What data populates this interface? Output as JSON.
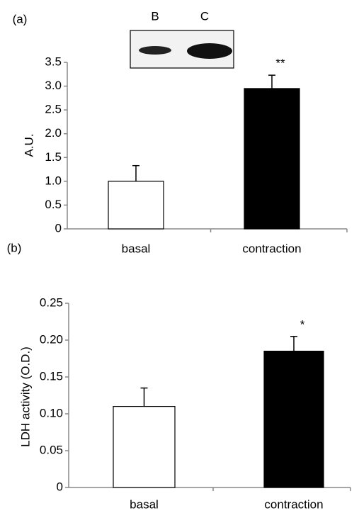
{
  "chart_data": [
    {
      "type": "bar",
      "panel_label": "(a)",
      "blot_labels": [
        "B",
        "C"
      ],
      "y_label": "A.U.",
      "categories": [
        "basal",
        "contraction"
      ],
      "values": [
        1.0,
        2.95
      ],
      "errors": [
        0.33,
        0.28
      ],
      "colors": [
        "#ffffff",
        "#000000"
      ],
      "annotations": [
        {
          "text": "**",
          "category": "contraction"
        }
      ],
      "ylim": [
        0,
        3.5
      ],
      "yticks": [
        0,
        0.5,
        {
          "value": 1,
          "label": "1.0"
        },
        1.5,
        {
          "value": 2,
          "label": "2.0"
        },
        2.5,
        {
          "value": 3,
          "label": "3.0"
        },
        3.5
      ]
    },
    {
      "type": "bar",
      "panel_label": "(b)",
      "y_label": "LDH activity (O.D.)",
      "categories": [
        "basal",
        "contraction"
      ],
      "values": [
        0.11,
        0.185
      ],
      "errors": [
        0.025,
        0.02
      ],
      "colors": [
        "#ffffff",
        "#000000"
      ],
      "annotations": [
        {
          "text": "*",
          "category": "contraction"
        }
      ],
      "ylim": [
        0,
        0.25
      ],
      "yticks": [
        0,
        0.05,
        {
          "value": 0.1,
          "label": "0.10"
        },
        0.15,
        {
          "value": 0.2,
          "label": "0.20"
        },
        0.25
      ]
    }
  ]
}
